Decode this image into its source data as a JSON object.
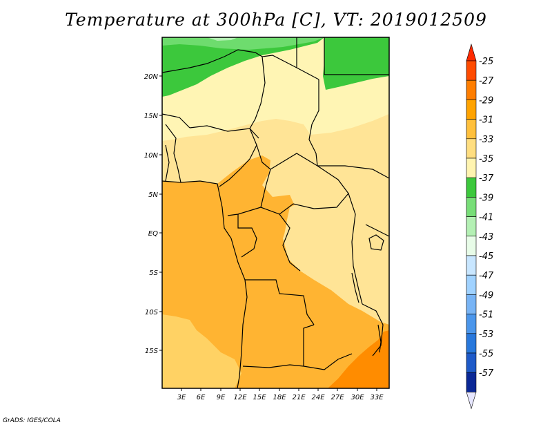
{
  "title": "Temperature at 300hPa [C], VT: 2019012509",
  "credit": "GrADS: IGES/COLA",
  "axes": {
    "lat_ticks": [
      "20N",
      "15N",
      "10N",
      "5N",
      "EQ",
      "5S",
      "10S",
      "15S"
    ],
    "lon_ticks": [
      "3E",
      "6E",
      "9E",
      "12E",
      "15E",
      "18E",
      "21E",
      "24E",
      "27E",
      "30E",
      "33E"
    ]
  },
  "colorbar": {
    "levels": [
      "-25",
      "-27",
      "-29",
      "-31",
      "-33",
      "-35",
      "-37",
      "-39",
      "-41",
      "-43",
      "-45",
      "-47",
      "-49",
      "-51",
      "-53",
      "-55",
      "-57"
    ],
    "colors": [
      "#ff4b00",
      "#ff7e00",
      "#ffa300",
      "#ffc03c",
      "#ffde80",
      "#fff4b0",
      "#3cc83c",
      "#78de78",
      "#b4f0b4",
      "#e8fce8",
      "#c8e6ff",
      "#a0d2ff",
      "#78b4f5",
      "#4b96eb",
      "#2878dc",
      "#1e5ac8",
      "#0a2896"
    ],
    "top_arrow_color": "#ff2a00",
    "bottom_arrow_color": "#e6e6ff"
  },
  "map_colors": {
    "band_neg25_27": "#ff8c00",
    "band_neg27_29": "#ffb432",
    "band_neg29_31": "#ffd264",
    "band_neg31_33": "#ffe496",
    "band_neg33_35": "#fff5b4",
    "band_neg35_37": "#3cc83c",
    "band_neg37_39": "#6edc6e"
  }
}
